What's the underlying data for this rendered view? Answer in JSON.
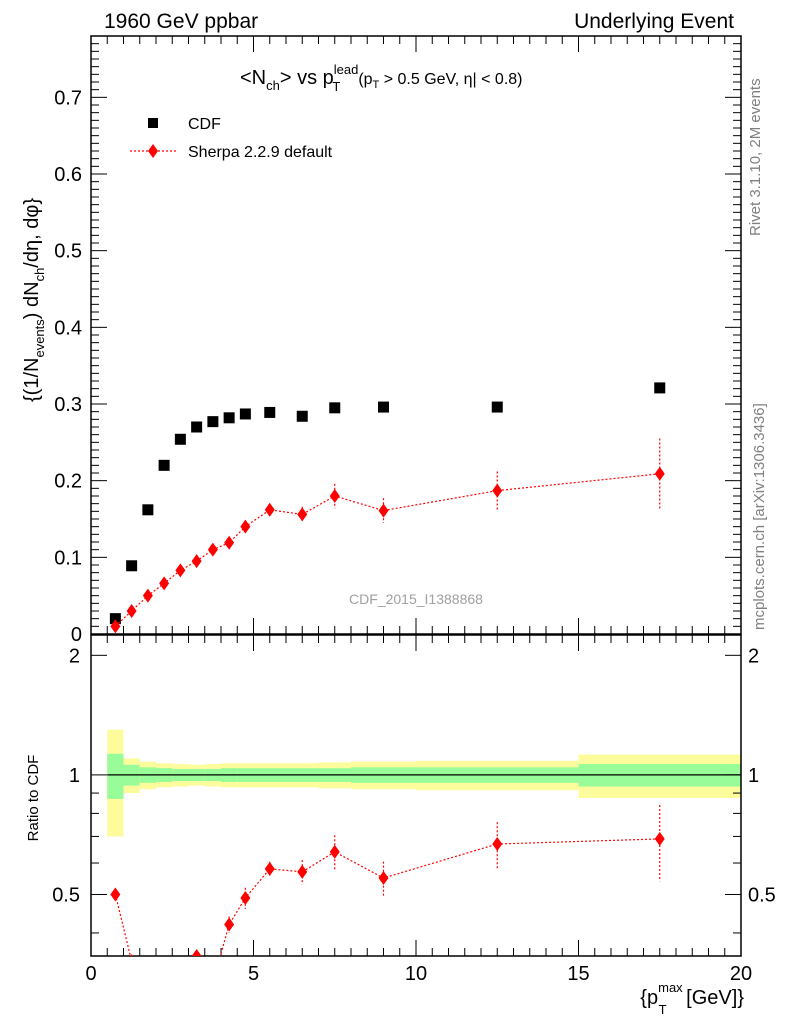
{
  "header": {
    "left": "1960 GeV ppbar",
    "right": "Underlying Event"
  },
  "side": {
    "rivet": "Rivet 3.1.10,  2M events",
    "mcplots": "mcplots.cern.ch [arXiv:1306.3436]"
  },
  "chart_data": [
    {
      "type": "scatter",
      "title": "<N_ch> vs p_T^lead (p_T > 0.5 GeV, |η| < 0.8)",
      "title_parts": {
        "main": "<N",
        "sub1": "ch",
        "mid": "> vs p",
        "sup": "lead",
        "sub2": "T",
        "cut": "(p",
        "cut_sub": "T",
        "cut_rest": " > 0.5 GeV, η| < 0.8)"
      },
      "ylabel": "{(1/N_events) dN_ch/dη, dφ}",
      "ylabel_parts": {
        "a": "{(1/N",
        "a_sub": "events",
        "b": ") dN",
        "b_sub": "ch",
        "c": "/dη, dφ}"
      },
      "analysis_label": "CDF_2015_I1388868",
      "xlim": [
        0,
        20
      ],
      "ylim": [
        0,
        0.78
      ],
      "yticks": [
        0,
        0.1,
        0.2,
        0.3,
        0.4,
        0.5,
        0.6,
        0.7
      ],
      "yticklabels": [
        "0",
        "0.1",
        "0.2",
        "0.3",
        "0.4",
        "0.5",
        "0.6",
        "0.7"
      ],
      "legend_position": "top-left",
      "series": [
        {
          "name": "CDF",
          "color": "#000000",
          "marker": "square",
          "x": [
            0.75,
            1.25,
            1.75,
            2.25,
            2.75,
            3.25,
            3.75,
            4.25,
            4.75,
            5.5,
            6.5,
            7.5,
            9.0,
            12.5,
            17.5
          ],
          "y": [
            0.02,
            0.089,
            0.162,
            0.22,
            0.254,
            0.27,
            0.277,
            0.282,
            0.287,
            0.289,
            0.284,
            0.295,
            0.296,
            0.296,
            0.321
          ]
        },
        {
          "name": "Sherpa 2.2.9 default",
          "color": "#ff0000",
          "marker": "diamond",
          "x": [
            0.75,
            1.25,
            1.75,
            2.25,
            2.75,
            3.25,
            3.75,
            4.25,
            4.75,
            5.5,
            6.5,
            7.5,
            9.0,
            12.5,
            17.5
          ],
          "y": [
            0.01,
            0.03,
            0.05,
            0.066,
            0.083,
            0.095,
            0.11,
            0.119,
            0.14,
            0.162,
            0.156,
            0.18,
            0.161,
            0.187,
            0.209
          ],
          "yerr": [
            0.003,
            0.004,
            0.004,
            0.004,
            0.005,
            0.005,
            0.005,
            0.006,
            0.007,
            0.008,
            0.01,
            0.016,
            0.016,
            0.025,
            0.046
          ]
        }
      ]
    },
    {
      "type": "scatter",
      "ylabel": "Ratio to CDF",
      "xlabel": "{p_T^max [GeV]}",
      "xlabel_parts": {
        "a": "{p",
        "sup": "max",
        "sub": "T",
        "b": " [GeV]}"
      },
      "xlim": [
        0,
        20
      ],
      "ylim": [
        0.35,
        2.25
      ],
      "xticks": [
        0,
        5,
        10,
        15,
        20
      ],
      "xticklabels": [
        "0",
        "5",
        "10",
        "15",
        "20"
      ],
      "yticks": [
        0.5,
        1,
        2
      ],
      "yticklabels": [
        "0.5",
        "1",
        "2"
      ],
      "bands": [
        {
          "x0": 0.5,
          "x1": 1.0,
          "stat": 0.13,
          "total": 0.3
        },
        {
          "x0": 1.0,
          "x1": 1.5,
          "stat": 0.06,
          "total": 0.1
        },
        {
          "x0": 1.5,
          "x1": 2.0,
          "stat": 0.045,
          "total": 0.08
        },
        {
          "x0": 2.0,
          "x1": 2.5,
          "stat": 0.04,
          "total": 0.07
        },
        {
          "x0": 2.5,
          "x1": 3.0,
          "stat": 0.035,
          "total": 0.065
        },
        {
          "x0": 3.0,
          "x1": 3.5,
          "stat": 0.035,
          "total": 0.06
        },
        {
          "x0": 3.5,
          "x1": 4.0,
          "stat": 0.035,
          "total": 0.065
        },
        {
          "x0": 4.0,
          "x1": 4.5,
          "stat": 0.04,
          "total": 0.07
        },
        {
          "x0": 4.5,
          "x1": 5.0,
          "stat": 0.04,
          "total": 0.07
        },
        {
          "x0": 5.0,
          "x1": 6.0,
          "stat": 0.04,
          "total": 0.07
        },
        {
          "x0": 6.0,
          "x1": 7.0,
          "stat": 0.04,
          "total": 0.07
        },
        {
          "x0": 7.0,
          "x1": 8.0,
          "stat": 0.04,
          "total": 0.075
        },
        {
          "x0": 8.0,
          "x1": 10.0,
          "stat": 0.045,
          "total": 0.08
        },
        {
          "x0": 10.0,
          "x1": 15.0,
          "stat": 0.045,
          "total": 0.085
        },
        {
          "x0": 15.0,
          "x1": 20.0,
          "stat": 0.065,
          "total": 0.125
        }
      ],
      "band_colors": {
        "stat": "#98fc98",
        "total": "#fcfc9c"
      },
      "series": [
        {
          "name": "Sherpa 2.2.9 default",
          "color": "#ff0000",
          "x": [
            0.75,
            1.25,
            1.75,
            2.25,
            2.75,
            3.25,
            3.75,
            4.25,
            4.75,
            5.5,
            6.5,
            7.5,
            9.0,
            12.5,
            17.5
          ],
          "y": [
            0.5,
            0.34,
            0.31,
            0.3,
            0.33,
            0.35,
            0.3,
            0.42,
            0.49,
            0.58,
            0.57,
            0.64,
            0.55,
            0.67,
            0.69
          ],
          "yerr": [
            0.0,
            0.0,
            0.0,
            0.0,
            0.0,
            0.0,
            0.0,
            0.02,
            0.03,
            0.025,
            0.04,
            0.065,
            0.055,
            0.09,
            0.15
          ]
        }
      ]
    }
  ]
}
